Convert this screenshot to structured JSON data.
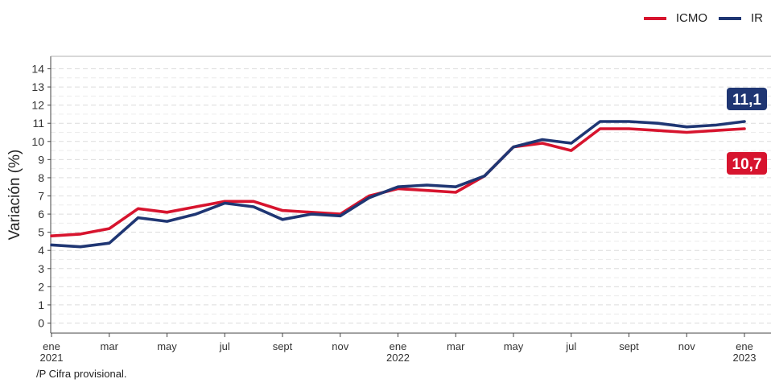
{
  "colors": {
    "ICMO": "#d7142e",
    "IR": "#1f3673"
  },
  "chart_data": {
    "type": "line",
    "title": "",
    "xlabel": "",
    "ylabel": "Variación (%)",
    "ylim": [
      0,
      14
    ],
    "yticks": [
      0,
      1,
      2,
      3,
      4,
      5,
      6,
      7,
      8,
      9,
      10,
      11,
      12,
      13,
      14
    ],
    "grid": true,
    "legend_position": "top-right",
    "x": [
      "2021-01",
      "2021-02",
      "2021-03",
      "2021-04",
      "2021-05",
      "2021-06",
      "2021-07",
      "2021-08",
      "2021-09",
      "2021-10",
      "2021-11",
      "2021-12",
      "2022-01",
      "2022-02",
      "2022-03",
      "2022-04",
      "2022-05",
      "2022-06",
      "2022-07",
      "2022-08",
      "2022-09",
      "2022-10",
      "2022-11",
      "2022-12",
      "2023-01"
    ],
    "xtick_labels": [
      {
        "x": "2021-01",
        "line1": "ene",
        "line2": "2021"
      },
      {
        "x": "2021-03",
        "line1": "mar",
        "line2": ""
      },
      {
        "x": "2021-05",
        "line1": "may",
        "line2": ""
      },
      {
        "x": "2021-07",
        "line1": "jul",
        "line2": ""
      },
      {
        "x": "2021-09",
        "line1": "sept",
        "line2": ""
      },
      {
        "x": "2021-11",
        "line1": "nov",
        "line2": ""
      },
      {
        "x": "2022-01",
        "line1": "ene",
        "line2": "2022"
      },
      {
        "x": "2022-03",
        "line1": "mar",
        "line2": ""
      },
      {
        "x": "2022-05",
        "line1": "may",
        "line2": ""
      },
      {
        "x": "2022-07",
        "line1": "jul",
        "line2": ""
      },
      {
        "x": "2022-09",
        "line1": "sept",
        "line2": ""
      },
      {
        "x": "2022-11",
        "line1": "nov",
        "line2": ""
      },
      {
        "x": "2023-01",
        "line1": "ene",
        "line2": "2023"
      }
    ],
    "series": [
      {
        "name": "ICMO",
        "color": "#d7142e",
        "values": [
          4.8,
          4.9,
          5.2,
          6.3,
          6.1,
          6.4,
          6.7,
          6.7,
          6.2,
          6.1,
          6.0,
          7.0,
          7.4,
          7.3,
          7.2,
          8.1,
          9.7,
          9.9,
          9.5,
          10.7,
          10.7,
          10.6,
          10.5,
          10.6,
          10.7
        ]
      },
      {
        "name": "IR",
        "color": "#1f3673",
        "values": [
          4.3,
          4.2,
          4.4,
          5.8,
          5.6,
          6.0,
          6.6,
          6.4,
          5.7,
          6.0,
          5.9,
          6.9,
          7.5,
          7.6,
          7.5,
          8.1,
          9.7,
          10.1,
          9.9,
          11.1,
          11.1,
          11.0,
          10.8,
          10.9,
          11.1
        ]
      }
    ],
    "end_labels": [
      {
        "series": "IR",
        "text": "11,1",
        "color": "#1f3673"
      },
      {
        "series": "ICMO",
        "text": "10,7",
        "color": "#d7142e"
      }
    ]
  },
  "legend": [
    {
      "label": "ICMO",
      "color": "#d7142e"
    },
    {
      "label": "IR",
      "color": "#1f3673"
    }
  ],
  "footnote": "/P Cifra provisional."
}
